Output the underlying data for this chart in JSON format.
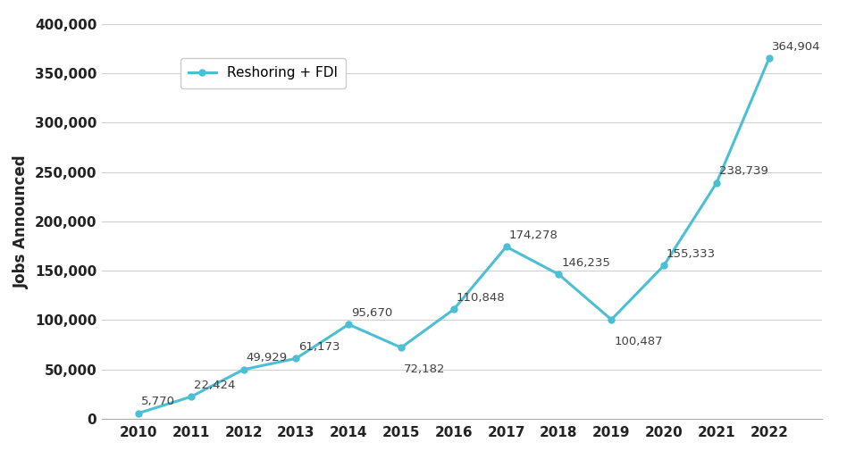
{
  "years": [
    2010,
    2011,
    2012,
    2013,
    2014,
    2015,
    2016,
    2017,
    2018,
    2019,
    2020,
    2021,
    2022
  ],
  "values": [
    5770,
    22424,
    49929,
    61173,
    95670,
    72182,
    110848,
    174278,
    146235,
    100487,
    155333,
    238739,
    364904
  ],
  "line_color": "#4BBFD4",
  "marker_style": "o",
  "marker_size": 5,
  "line_width": 2.2,
  "legend_label": "Reshoring + FDI",
  "ylabel": "Jobs Announced",
  "ylim": [
    0,
    400000
  ],
  "yticks": [
    0,
    50000,
    100000,
    150000,
    200000,
    250000,
    300000,
    350000,
    400000
  ],
  "background_color": "#ffffff",
  "grid_color": "#d0d0d0",
  "annotation_fontsize": 9.5,
  "ylabel_fontsize": 12,
  "tick_fontsize": 11,
  "legend_fontsize": 11,
  "annotation_offsets": {
    "2010": [
      0.05,
      6000,
      "left",
      "bottom"
    ],
    "2011": [
      0.05,
      6000,
      "left",
      "bottom"
    ],
    "2012": [
      0.05,
      6000,
      "left",
      "bottom"
    ],
    "2013": [
      0.05,
      6000,
      "left",
      "bottom"
    ],
    "2014": [
      0.05,
      6000,
      "left",
      "bottom"
    ],
    "2015": [
      0.05,
      -16000,
      "left",
      "top"
    ],
    "2016": [
      0.05,
      6000,
      "left",
      "bottom"
    ],
    "2017": [
      0.05,
      6000,
      "left",
      "bottom"
    ],
    "2018": [
      0.05,
      6000,
      "left",
      "bottom"
    ],
    "2019": [
      0.05,
      -16000,
      "left",
      "top"
    ],
    "2020": [
      0.05,
      6000,
      "left",
      "bottom"
    ],
    "2021": [
      0.05,
      6000,
      "left",
      "bottom"
    ],
    "2022": [
      0.05,
      6000,
      "left",
      "bottom"
    ]
  }
}
